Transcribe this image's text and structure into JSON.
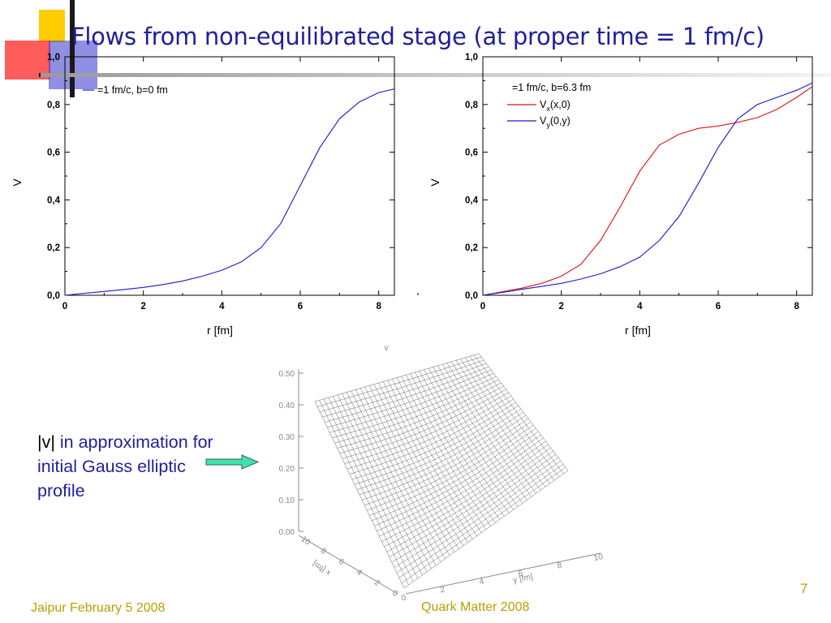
{
  "slide": {
    "title": "Flows from non-equilibrated stage (at proper time  = 1 fm/c)",
    "note_abs": "|v|",
    "note_rest": " in approximation for initial Gauss elliptic profile",
    "footer_left": "Jaipur February 5 2008",
    "footer_center": "Quark Matter 2008",
    "page_number": "7",
    "colors": {
      "title": "#1f1f9a",
      "footer": "#b8a000",
      "arrow": "#40e0b0",
      "accent_yellow": "#ffcc00",
      "accent_red": "#ff3b3b",
      "accent_blue": "#3333cc"
    }
  },
  "chart_data": [
    {
      "type": "line",
      "title": "",
      "legend": "=1 fm/c, b=0 fm",
      "xlabel": "r [fm]",
      "ylabel": "V",
      "xlim": [
        0,
        8.4
      ],
      "ylim": [
        0,
        1.0
      ],
      "xticks": [
        "0",
        "2",
        "4",
        "6",
        "8"
      ],
      "yticks": [
        "0,0",
        "0,2",
        "0,4",
        "0,6",
        "0,8",
        "1,0"
      ],
      "series": [
        {
          "color": "#1a1acc",
          "x": [
            0,
            0.5,
            1,
            1.5,
            2,
            2.5,
            3,
            3.5,
            4,
            4.5,
            5,
            5.5,
            6,
            6.5,
            7,
            7.5,
            8,
            8.4
          ],
          "y": [
            0.0,
            0.008,
            0.016,
            0.024,
            0.033,
            0.045,
            0.06,
            0.08,
            0.105,
            0.14,
            0.2,
            0.3,
            0.46,
            0.62,
            0.74,
            0.81,
            0.85,
            0.865
          ]
        }
      ]
    },
    {
      "type": "line",
      "title": "",
      "legend_title": "=1 fm/c, b=6.3 fm",
      "xlabel": "r [fm]",
      "ylabel": "V",
      "xlim": [
        0,
        8.4
      ],
      "ylim": [
        0,
        1.0
      ],
      "xticks": [
        "0",
        "2",
        "4",
        "6",
        "8"
      ],
      "yticks": [
        "0,0",
        "0,2",
        "0,4",
        "0,6",
        "0,8",
        "1,0"
      ],
      "series": [
        {
          "name_main": "V",
          "name_sub": "x",
          "name_rest": "(x,0)",
          "color": "#dd1111",
          "x": [
            0,
            0.5,
            1,
            1.5,
            2,
            2.5,
            3,
            3.5,
            4,
            4.5,
            5,
            5.5,
            6,
            6.5,
            7,
            7.5,
            8,
            8.4
          ],
          "y": [
            0.0,
            0.015,
            0.03,
            0.05,
            0.08,
            0.13,
            0.23,
            0.37,
            0.52,
            0.63,
            0.675,
            0.7,
            0.71,
            0.725,
            0.745,
            0.78,
            0.83,
            0.875
          ]
        },
        {
          "name_main": "V",
          "name_sub": "y",
          "name_rest": "(0,y)",
          "color": "#1a1acc",
          "x": [
            0,
            0.5,
            1,
            1.5,
            2,
            2.5,
            3,
            3.5,
            4,
            4.5,
            5,
            5.5,
            6,
            6.5,
            7,
            7.5,
            8,
            8.4
          ],
          "y": [
            0.0,
            0.012,
            0.025,
            0.037,
            0.05,
            0.068,
            0.09,
            0.12,
            0.16,
            0.23,
            0.33,
            0.47,
            0.62,
            0.74,
            0.8,
            0.83,
            0.86,
            0.89
          ]
        }
      ]
    },
    {
      "type": "surface",
      "title": "",
      "zlabel": "v",
      "xlabel": "x [fm]",
      "ylabel": "y [fm]",
      "zticks": [
        "0.00",
        "0.10",
        "0.20",
        "0.30",
        "0.40",
        "0.50"
      ],
      "xticks": [
        "0",
        "2",
        "4",
        "6",
        "8",
        "10"
      ],
      "yticks": [
        "0",
        "2",
        "4",
        "6",
        "8",
        "10"
      ]
    }
  ]
}
